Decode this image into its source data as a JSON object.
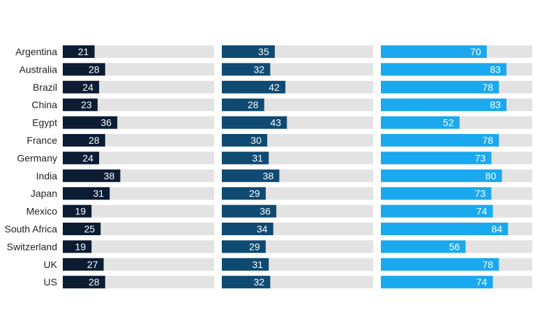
{
  "chart_data": {
    "type": "bar",
    "orientation": "horizontal",
    "categories": [
      "Argentina",
      "Australia",
      "Brazil",
      "China",
      "Egypt",
      "France",
      "Germany",
      "India",
      "Japan",
      "Mexico",
      "South Africa",
      "Switzerland",
      "UK",
      "US"
    ],
    "xlim": [
      0,
      100
    ],
    "grid": false,
    "series": [
      {
        "color": "#0b1c33",
        "values": [
          21,
          28,
          24,
          23,
          36,
          28,
          24,
          38,
          31,
          19,
          25,
          19,
          27,
          28
        ]
      },
      {
        "color": "#0f4a72",
        "values": [
          35,
          32,
          42,
          28,
          43,
          30,
          31,
          38,
          29,
          36,
          34,
          29,
          31,
          32
        ]
      },
      {
        "color": "#1aa9ee",
        "values": [
          70,
          83,
          78,
          83,
          52,
          78,
          73,
          80,
          73,
          74,
          84,
          56,
          78,
          74
        ]
      }
    ],
    "track_color": "#e3e3e3",
    "label_color": "#ffffff",
    "category_label_color": "#222222"
  }
}
